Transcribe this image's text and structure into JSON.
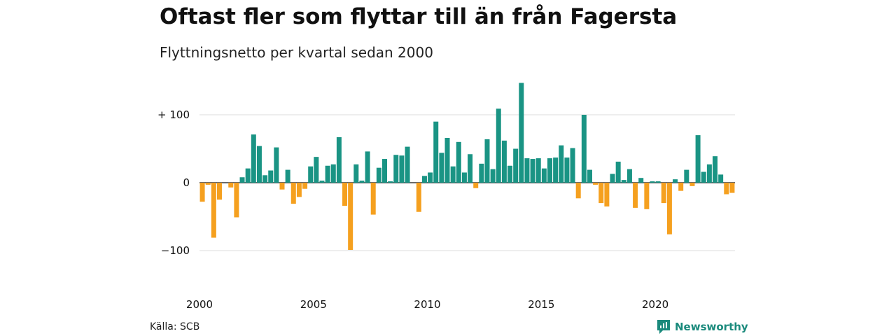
{
  "title": "Oftast fler som flyttar till än från Fagersta",
  "subtitle": "Flyttningsnetto per kvartal sedan 2000",
  "source": "Källa: SCB",
  "brand": {
    "name": "Newsworthy",
    "icon": "newsworthy-logo-icon"
  },
  "colors": {
    "positive": "#1a9484",
    "negative": "#f5a01f",
    "grid": "#dddddd",
    "zero": "#111111",
    "brand": "#1a8a7c"
  },
  "chart_data": {
    "type": "bar",
    "title": "Oftast fler som flyttar till än från Fagersta",
    "subtitle": "Flyttningsnetto per kvartal sedan 2000",
    "frequency": "quarterly",
    "x_start": "2000 Q1",
    "x_tick_labels": [
      "2000",
      "2005",
      "2010",
      "2015",
      "2020"
    ],
    "y_tick_labels": [
      "+ 100",
      "0",
      "−100"
    ],
    "y_ticks": [
      100,
      0,
      -100
    ],
    "ylim": [
      -100,
      150
    ],
    "grid": true,
    "series": [
      {
        "values": [
          -28,
          -3,
          -81,
          -25,
          0,
          -7,
          -51,
          8,
          21,
          71,
          54,
          11,
          18,
          52,
          -10,
          19,
          -31,
          -21,
          -9,
          24,
          38,
          3,
          25,
          27,
          67,
          -34,
          -99,
          27,
          3,
          46,
          -47,
          22,
          35,
          2,
          41,
          40,
          53,
          0,
          -43,
          10,
          15,
          90,
          44,
          66,
          24,
          60,
          15,
          42,
          -8,
          28,
          64,
          20,
          109,
          62,
          25,
          50,
          147,
          36,
          35,
          36,
          21,
          36,
          37,
          55,
          37,
          51,
          -23,
          100,
          19,
          -3,
          -30,
          -35,
          13,
          31,
          4,
          20,
          -37,
          7,
          -39,
          2,
          2,
          -30,
          -76,
          5,
          -12,
          19,
          -5,
          70,
          16,
          27,
          39,
          12,
          -17,
          -15
        ]
      }
    ]
  }
}
